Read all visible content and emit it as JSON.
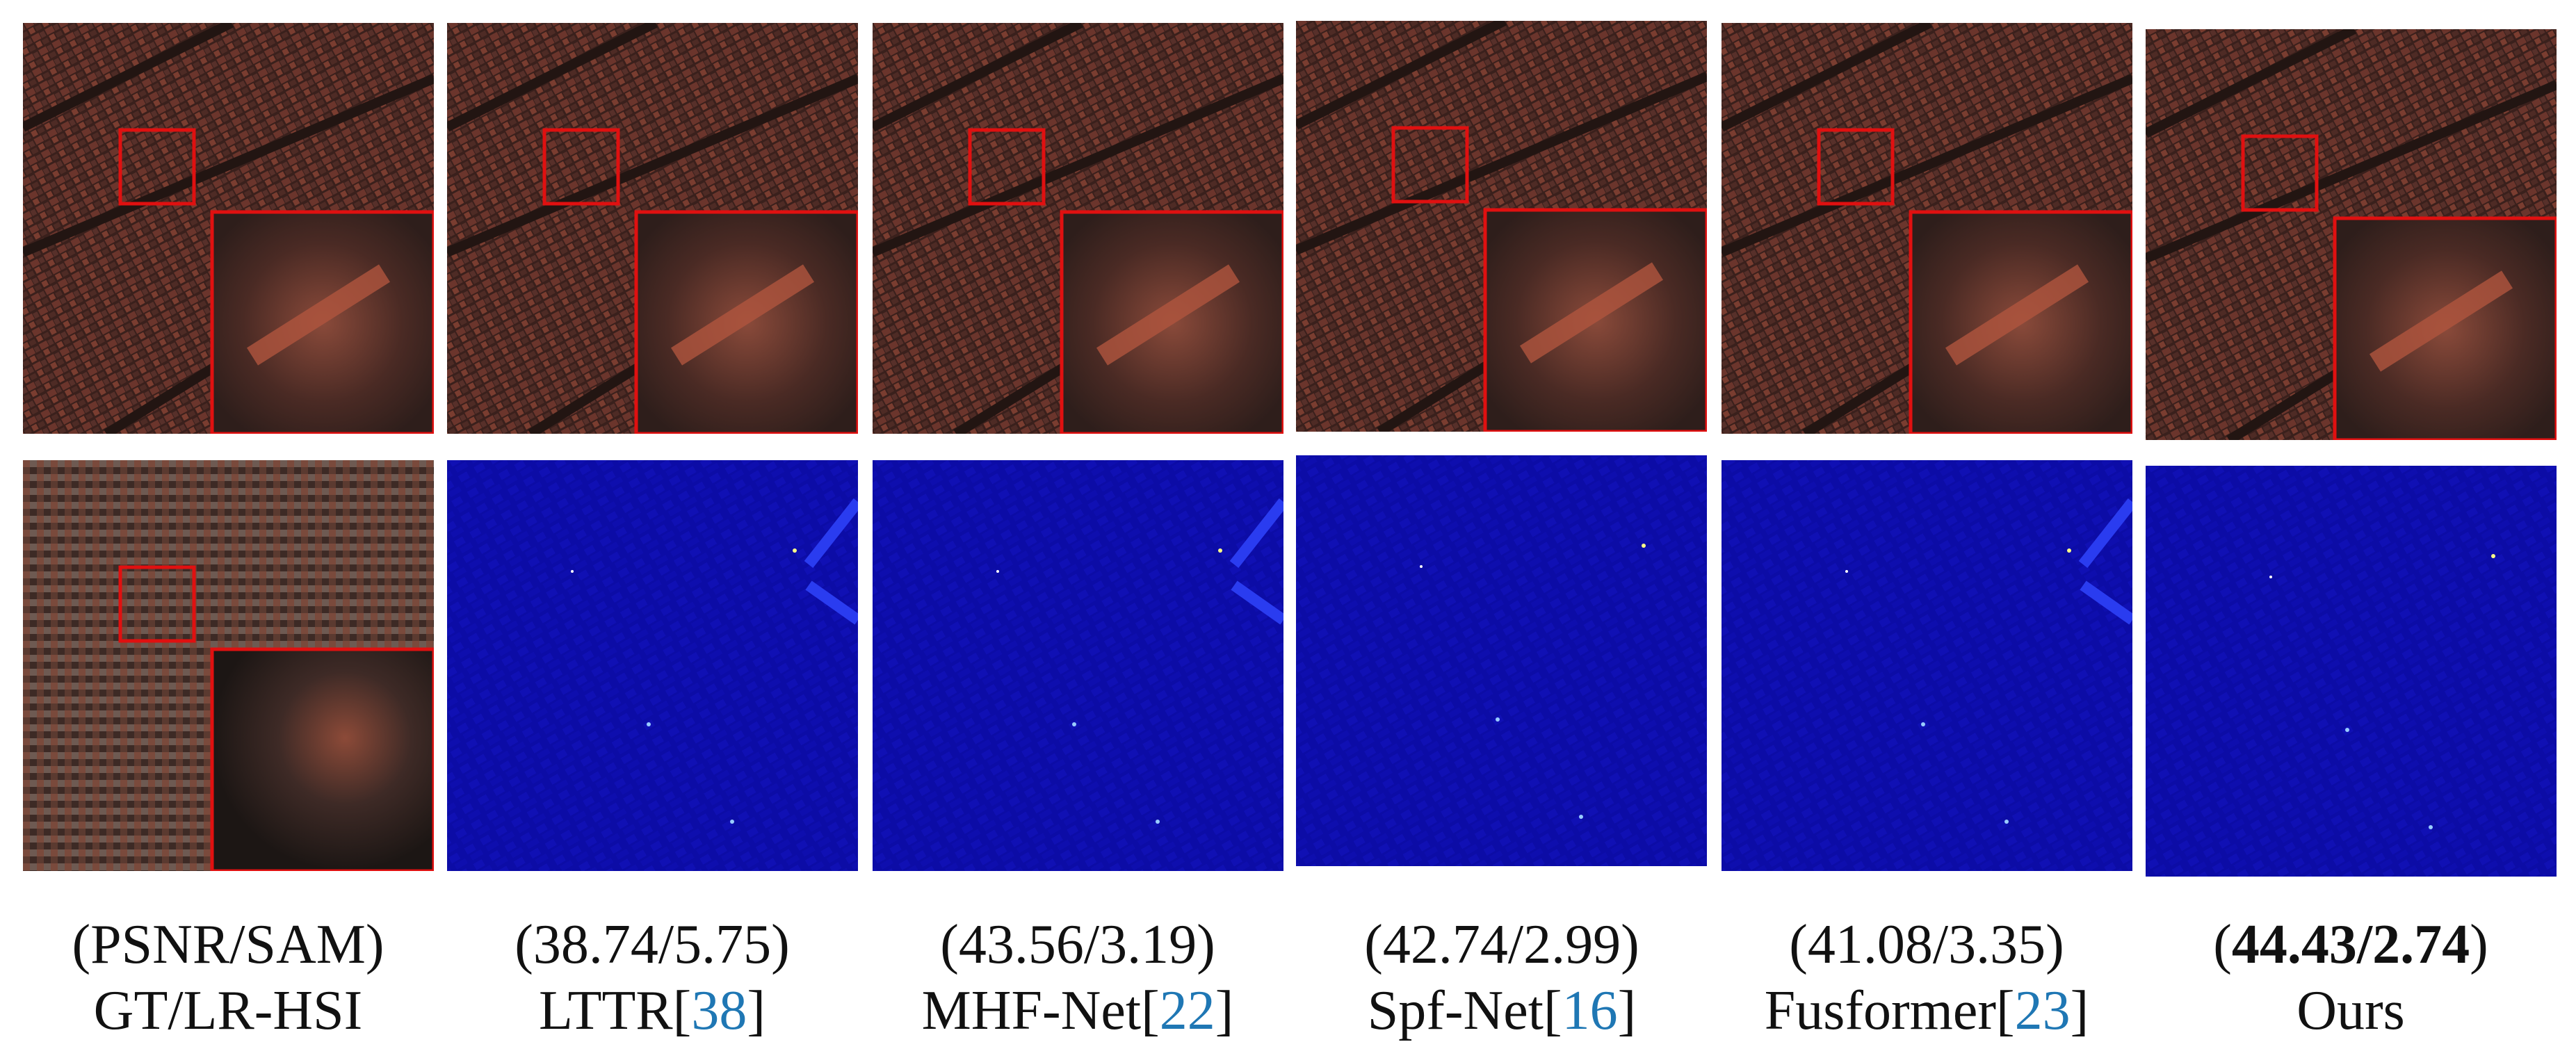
{
  "panels": [
    {
      "metrics": [
        "(",
        "PSNR/SAM",
        ")"
      ],
      "method": "GT/LR-HSI"
    },
    {
      "metrics": [
        "(",
        "38.74/5.75",
        ")"
      ],
      "method": "LTTR",
      "ref": [
        "[",
        "38",
        "]"
      ]
    },
    {
      "metrics": [
        "(",
        "43.56/3.19",
        ")"
      ],
      "method": "MHF-Net",
      "ref": [
        "[",
        "22",
        "]"
      ]
    },
    {
      "metrics": [
        "(",
        "42.74/2.99",
        ")"
      ],
      "method": "Spf-Net",
      "ref": [
        "[",
        "16",
        "]"
      ]
    },
    {
      "metrics": [
        "(",
        "41.08/3.35",
        ")"
      ],
      "method": "Fusformer",
      "ref": [
        "[",
        "23",
        "]"
      ]
    },
    {
      "metrics": [
        "(",
        "44.43/2.74",
        ")"
      ],
      "method": "Ours",
      "best": true
    }
  ]
}
